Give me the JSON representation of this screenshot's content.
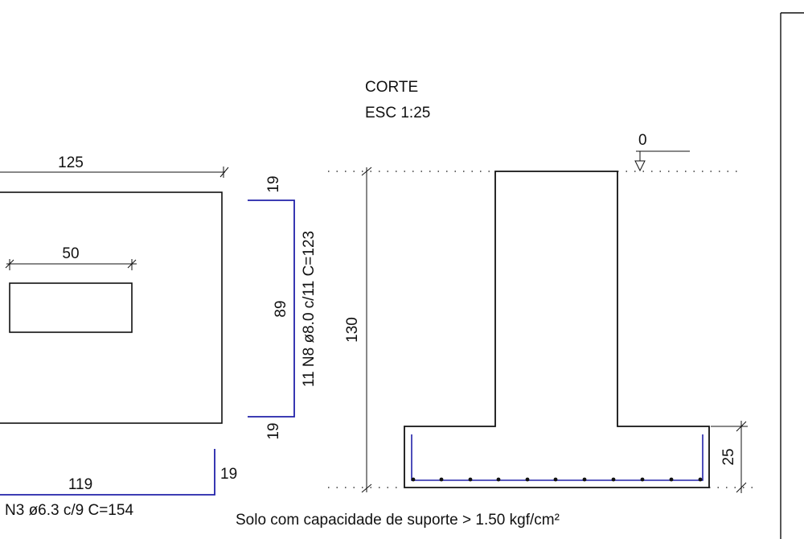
{
  "section": {
    "title": "CORTE",
    "scale": "ESC 1:25"
  },
  "plan": {
    "width_dim": "125",
    "column_dim": "50"
  },
  "bar_n8": {
    "top_leg": "19",
    "length": "89",
    "spec": "11 N8 ø8.0 c/11  C=123",
    "bottom_leg": "19"
  },
  "bar_n3": {
    "leg": "19",
    "length": "119",
    "spec": "N3 ø6.3 c/9  C=154"
  },
  "elevation": {
    "level": "0",
    "height_dim": "130",
    "base_dim": "25"
  },
  "soil_note": "Solo com capacidade de suporte > 1.50 kgf/cm²",
  "colors": {
    "line": "#111111",
    "rebar": "#2222aa"
  },
  "icons": {
    "level_marker": "level-triangle-icon"
  }
}
